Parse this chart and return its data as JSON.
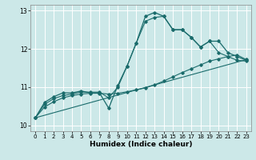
{
  "title": "",
  "xlabel": "Humidex (Indice chaleur)",
  "background_color": "#cce8e8",
  "grid_color": "#ffffff",
  "line_color": "#1a6b6b",
  "xlim": [
    -0.5,
    23.5
  ],
  "ylim": [
    9.85,
    13.15
  ],
  "yticks": [
    10,
    11,
    12,
    13
  ],
  "xticks": [
    0,
    1,
    2,
    3,
    4,
    5,
    6,
    7,
    8,
    9,
    10,
    11,
    12,
    13,
    14,
    15,
    16,
    17,
    18,
    19,
    20,
    21,
    22,
    23
  ],
  "series": [
    {
      "x": [
        0,
        1,
        2,
        3,
        4,
        5,
        6,
        7,
        8,
        9,
        10,
        11,
        12,
        13,
        14,
        15,
        16,
        17,
        18,
        19,
        20,
        21,
        22,
        23
      ],
      "y": [
        10.2,
        10.6,
        10.75,
        10.85,
        10.85,
        10.9,
        10.85,
        10.85,
        10.45,
        11.05,
        11.55,
        12.15,
        12.85,
        12.95,
        12.85,
        12.5,
        12.5,
        12.3,
        12.05,
        12.2,
        12.2,
        11.9,
        11.8,
        11.7
      ]
    },
    {
      "x": [
        0,
        1,
        2,
        3,
        4,
        5,
        6,
        7,
        8,
        9,
        10,
        11,
        12,
        13,
        14,
        15,
        16,
        17,
        18,
        19,
        20,
        21,
        22,
        23
      ],
      "y": [
        10.2,
        10.48,
        10.62,
        10.72,
        10.78,
        10.82,
        10.84,
        10.84,
        10.82,
        10.84,
        10.88,
        10.93,
        10.98,
        11.06,
        11.16,
        11.27,
        11.38,
        11.48,
        11.58,
        11.68,
        11.74,
        11.8,
        11.84,
        11.72
      ]
    },
    {
      "x": [
        0,
        1,
        2,
        3,
        4,
        5,
        6,
        7,
        8,
        9,
        10,
        11,
        12,
        13,
        14,
        15,
        16,
        17,
        18,
        19,
        20,
        21,
        22,
        23
      ],
      "y": [
        10.2,
        10.55,
        10.7,
        10.78,
        10.82,
        10.87,
        10.87,
        10.87,
        10.72,
        11.0,
        11.55,
        12.15,
        12.72,
        12.82,
        12.85,
        12.5,
        12.5,
        12.3,
        12.05,
        12.2,
        11.9,
        11.8,
        11.7,
        11.68
      ]
    },
    {
      "x": [
        0,
        23
      ],
      "y": [
        10.2,
        11.72
      ]
    }
  ]
}
